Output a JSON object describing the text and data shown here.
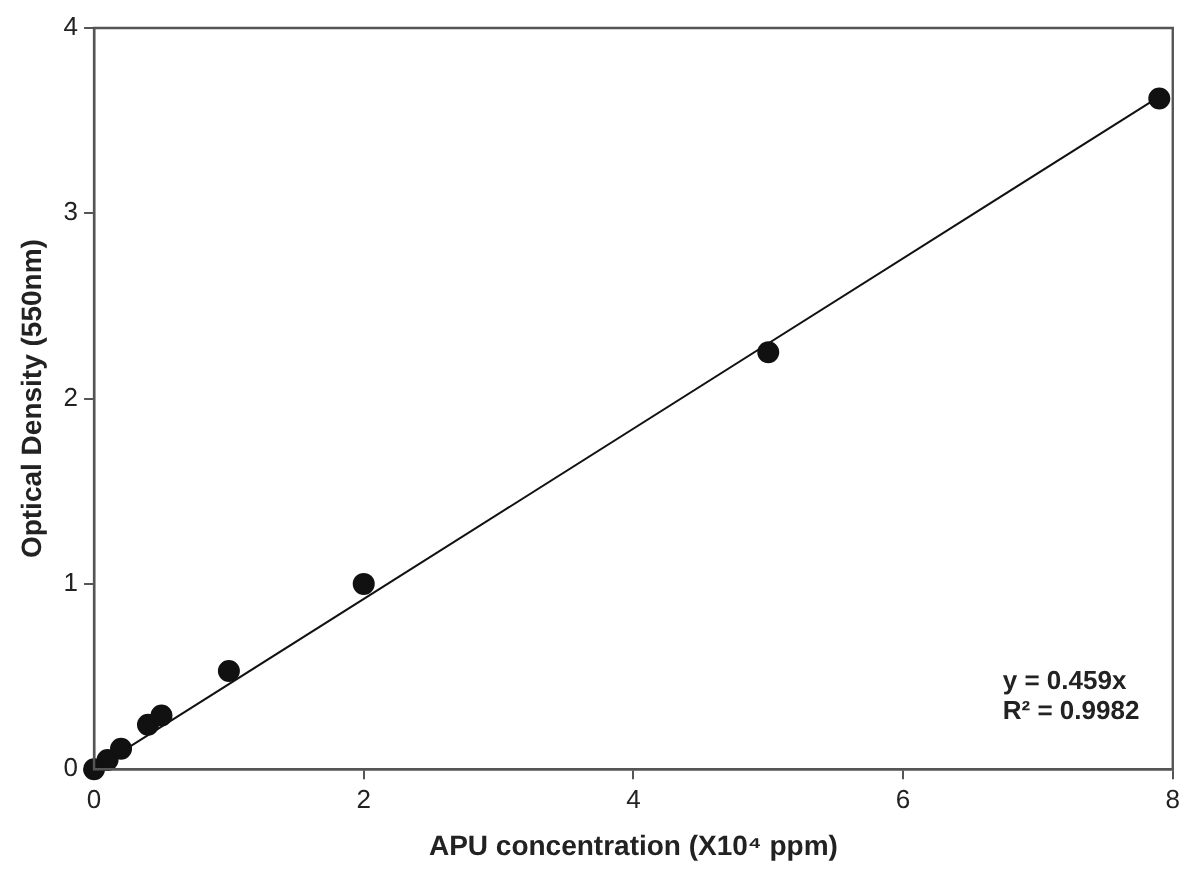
{
  "chart_data": {
    "type": "scatter",
    "xlabel": "APU concentration (X10⁴ ppm)",
    "ylabel": "Optical Density (550nm)",
    "series": [
      {
        "color": "#111111",
        "marker": "circle",
        "x": [
          0,
          0.1,
          0.2,
          0.4,
          0.5,
          1,
          2,
          5,
          7.9
        ],
        "values": [
          0,
          0.05,
          0.11,
          0.24,
          0.29,
          0.53,
          1.0,
          2.25,
          3.62
        ]
      },
      {
        "type": "line",
        "color": "#111111",
        "marker": "none",
        "x": [
          0,
          7.9
        ],
        "values": [
          0,
          3.63
        ]
      }
    ],
    "xlim": [
      0,
      8
    ],
    "xticks": [
      0,
      2,
      4,
      6,
      8
    ],
    "ylim": [
      0,
      4
    ],
    "yticks": [
      0,
      1,
      2,
      3,
      4
    ],
    "grid": false,
    "legend": false,
    "annotations": [
      "y = 0.459x",
      "R² = 0.9982"
    ]
  }
}
